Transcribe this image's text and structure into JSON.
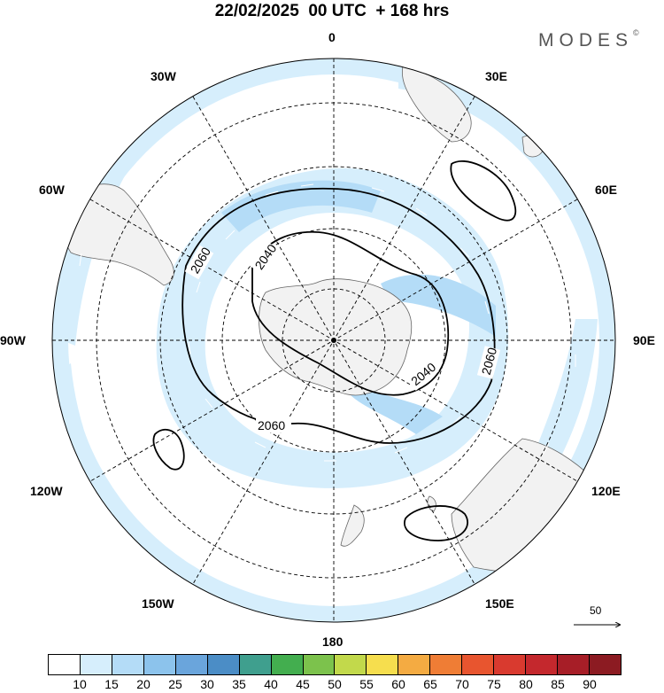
{
  "title": "22/02/2025  00 UTC  + 168 hrs",
  "brand": {
    "text": "MODES",
    "mark": "©"
  },
  "longitude_labels": {
    "n": "0",
    "s": "180",
    "e90": "90E",
    "w90": "90W",
    "e30": "30E",
    "w30": "30W",
    "e60": "60E",
    "w60": "60W",
    "e120": "120E",
    "w120": "120W",
    "e150": "150E",
    "w150": "150W"
  },
  "contour_labels": [
    "2060",
    "2040",
    "2040",
    "2060",
    "2060"
  ],
  "reference_vector": {
    "value": "50"
  },
  "colorbar": {
    "labels": [
      "10",
      "15",
      "20",
      "25",
      "30",
      "35",
      "40",
      "45",
      "50",
      "55",
      "60",
      "65",
      "70",
      "75",
      "80",
      "85",
      "90"
    ],
    "colors": [
      "#ffffff",
      "#d6eefc",
      "#b4dcf7",
      "#8cc3ec",
      "#6aa5dc",
      "#4b8dc6",
      "#3f9f8e",
      "#43ae4f",
      "#7cc24c",
      "#c2d94b",
      "#f6de4e",
      "#f4ab42",
      "#ef7d35",
      "#e8552f",
      "#d93a2f",
      "#c4282d",
      "#a71e27",
      "#8c1b22"
    ]
  }
}
